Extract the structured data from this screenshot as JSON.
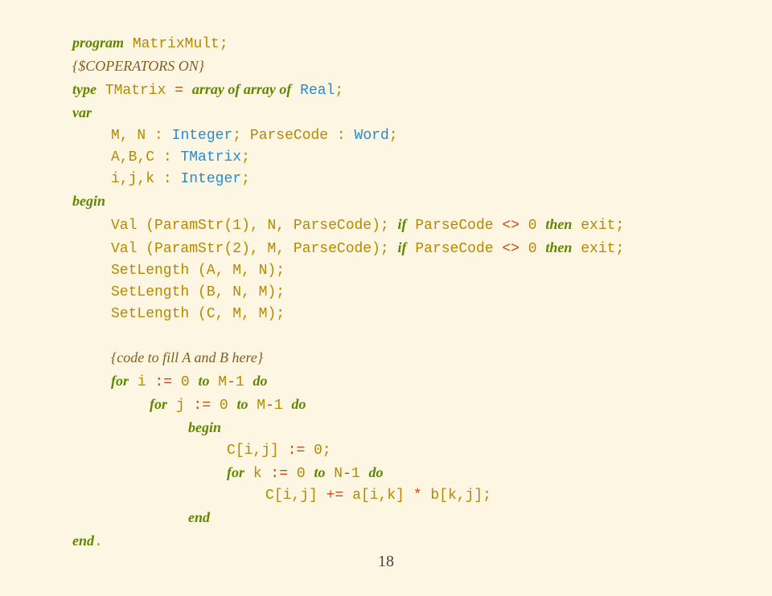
{
  "colors": {
    "background": "#fdf6e3",
    "keyword": "#5f8700",
    "directive": "#806020",
    "identifier": "#b58900",
    "type": "#268bd2",
    "operator": "#cb4b16",
    "number": "#555555",
    "plain": "#333333"
  },
  "typography": {
    "code_font": "Courier New, monospace",
    "keyword_font": "Georgia, serif italic bold",
    "fontsize_pt": 14,
    "line_height": 1.5
  },
  "page_number": "18",
  "code": {
    "l1": {
      "kw": "program",
      "sp": " ",
      "name": "MatrixMult",
      "semi": ";"
    },
    "l2": {
      "dir": "{$COPERATORS ON}"
    },
    "l3": {
      "kw1": "type",
      "sp1": " ",
      "name": "TMatrix",
      "sp2": " ",
      "eq": "=",
      "sp3": " ",
      "kw2": "array of array of",
      "sp4": " ",
      "type": "Real",
      "semi": ";"
    },
    "l4": {
      "kw": "var"
    },
    "l5": {
      "names": "M, N ",
      "colon": ":",
      "sp": " ",
      "type1": "Integer",
      "semi1": ";",
      "sp2": " ",
      "name2": "ParseCode ",
      "colon2": ":",
      "sp3": " ",
      "type2": "Word",
      "semi2": ";"
    },
    "l6": {
      "names": "A,B,C ",
      "colon": ":",
      "sp": " ",
      "type": "TMatrix",
      "semi": ";"
    },
    "l7": {
      "names": "i,j,k ",
      "colon": ":",
      "sp": " ",
      "type": "Integer",
      "semi": ";"
    },
    "l8": {
      "kw": "begin"
    },
    "l9": {
      "fn": "Val ",
      "p1": "(",
      "call": "ParamStr",
      "p2": "(",
      "n1": "1",
      "p3": "),",
      "args": " N, ParseCode",
      "p4": ");",
      "sp": " ",
      "kw1": "if",
      "cond": " ParseCode ",
      "ne": "<>",
      "sp2": " ",
      "n2": "0",
      "sp3": " ",
      "kw2": "then",
      "sp4": " ",
      "ex": "exit",
      "semi": ";"
    },
    "l10": {
      "fn": "Val ",
      "p1": "(",
      "call": "ParamStr",
      "p2": "(",
      "n1": "2",
      "p3": "),",
      "args": " M, ParseCode",
      "p4": ");",
      "sp": " ",
      "kw1": "if",
      "cond": " ParseCode ",
      "ne": "<>",
      "sp2": " ",
      "n2": "0",
      "sp3": " ",
      "kw2": "then",
      "sp4": " ",
      "ex": "exit",
      "semi": ";"
    },
    "l11": {
      "fn": "SetLength ",
      "p1": "(",
      "args": "A, M, N",
      "p2": ");"
    },
    "l12": {
      "fn": "SetLength ",
      "p1": "(",
      "args": "B, N, M",
      "p2": ");"
    },
    "l13": {
      "fn": "SetLength ",
      "p1": "(",
      "args": "C, M, M",
      "p2": ");"
    },
    "l14": {
      "dir": "{code to fill A and B here}"
    },
    "l15": {
      "kw1": "for",
      "sp1": " ",
      "v": "i ",
      "assign": ":=",
      "sp2": " ",
      "n1": "0",
      "sp3": " ",
      "kw2": "to",
      "sp4": " ",
      "expr": "M",
      "minus": "-",
      "n2": "1",
      "sp5": " ",
      "kw3": "do"
    },
    "l16": {
      "kw1": "for",
      "sp1": " ",
      "v": "j ",
      "assign": ":=",
      "sp2": " ",
      "n1": "0",
      "sp3": " ",
      "kw2": "to",
      "sp4": " ",
      "expr": "M",
      "minus": "-",
      "n2": "1",
      "sp5": " ",
      "kw3": "do"
    },
    "l17": {
      "kw": "begin"
    },
    "l18": {
      "lhs": "C",
      "b1": "[",
      "idx": "i,j",
      "b2": "]",
      "sp": " ",
      "assign": ":=",
      "sp2": " ",
      "n": "0",
      "semi": ";"
    },
    "l19": {
      "kw1": "for",
      "sp1": " ",
      "v": "k ",
      "assign": ":=",
      "sp2": " ",
      "n1": "0",
      "sp3": " ",
      "kw2": "to",
      "sp4": " ",
      "expr": "N",
      "minus": "-",
      "n2": "1",
      "sp5": " ",
      "kw3": "do"
    },
    "l20": {
      "lhs": "C",
      "b1": "[",
      "idx1": "i,j",
      "b2": "]",
      "sp": " ",
      "op": "+=",
      "sp2": " ",
      "a": "a",
      "b3": "[",
      "idx2": "i,k",
      "b4": "]",
      "sp3": " ",
      "mul": "*",
      "sp4": " ",
      "b": "b",
      "b5": "[",
      "idx3": "k,j",
      "b6": "];"
    },
    "l21": {
      "kw": "end"
    },
    "l22": {
      "kw": "end",
      "dot": "."
    }
  }
}
